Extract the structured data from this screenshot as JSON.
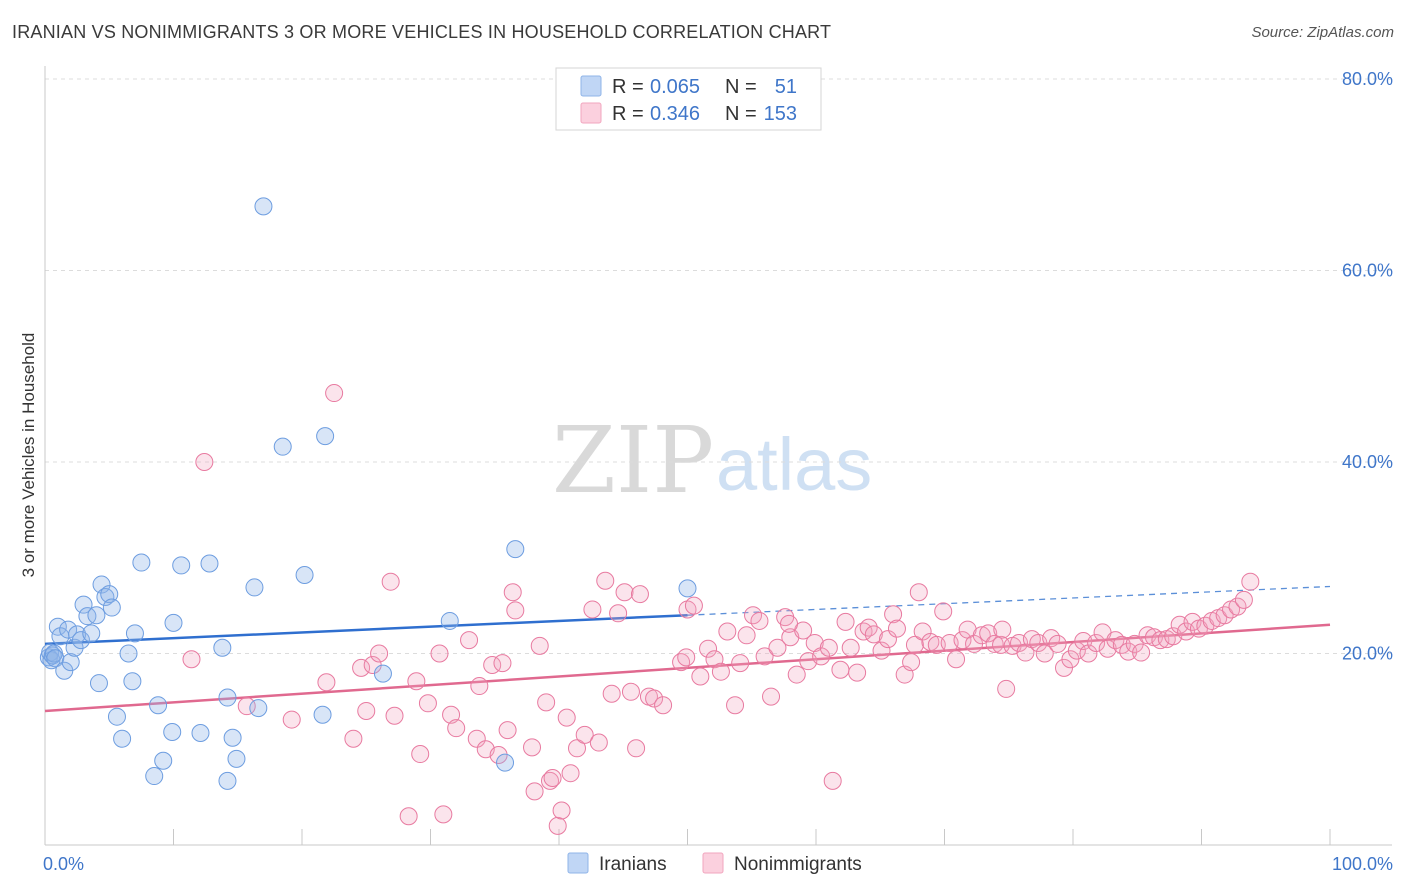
{
  "title": "IRANIAN VS NONIMMIGRANTS 3 OR MORE VEHICLES IN HOUSEHOLD CORRELATION CHART",
  "source": "Source: ZipAtlas.com",
  "watermark": {
    "zip": "ZIP",
    "atlas": "atlas"
  },
  "legend_top": {
    "r_label": "R =",
    "n_label": "N =",
    "rows": [
      {
        "r": "0.065",
        "n": "51",
        "color": "#8fb4e8"
      },
      {
        "r": "0.346",
        "n": "153",
        "color": "#f2a6bf"
      }
    ]
  },
  "legend_bottom": [
    "Iranians",
    "Nonimmigrants"
  ],
  "chart_data": {
    "type": "scatter",
    "title": "IRANIAN VS NONIMMIGRANTS 3 OR MORE VEHICLES IN HOUSEHOLD CORRELATION CHART",
    "xlabel": "",
    "ylabel": "3 or more Vehicles in Household",
    "xlim": [
      0,
      100
    ],
    "ylim": [
      0,
      80
    ],
    "x_ticks": [
      "0.0%",
      "100.0%"
    ],
    "y_ticks": [
      "20.0%",
      "40.0%",
      "60.0%",
      "80.0%"
    ],
    "grid": true,
    "legend": "top-center",
    "series": [
      {
        "name": "Iranians",
        "color": "#6d9de0",
        "fill": "rgba(143,180,232,0.35)",
        "trend": {
          "x0": 0,
          "y0": 21.0,
          "x1": 100,
          "y1": 27.0,
          "solid_to": 50
        },
        "points": [
          [
            0.3,
            19.6
          ],
          [
            0.4,
            20.1
          ],
          [
            0.5,
            19.3
          ],
          [
            0.6,
            19.8
          ],
          [
            0.7,
            20.0
          ],
          [
            0.8,
            19.5
          ],
          [
            1.0,
            22.8
          ],
          [
            1.2,
            21.8
          ],
          [
            1.5,
            18.2
          ],
          [
            1.8,
            22.5
          ],
          [
            2.0,
            19.1
          ],
          [
            2.3,
            20.6
          ],
          [
            2.5,
            22.0
          ],
          [
            2.8,
            21.4
          ],
          [
            3.0,
            25.1
          ],
          [
            3.3,
            23.9
          ],
          [
            3.6,
            22.1
          ],
          [
            4.0,
            24.0
          ],
          [
            4.2,
            16.9
          ],
          [
            4.4,
            27.2
          ],
          [
            4.7,
            25.9
          ],
          [
            5.0,
            26.2
          ],
          [
            5.2,
            24.8
          ],
          [
            5.6,
            13.4
          ],
          [
            6.0,
            11.1
          ],
          [
            6.5,
            20.0
          ],
          [
            6.8,
            17.1
          ],
          [
            7.0,
            22.1
          ],
          [
            7.5,
            29.5
          ],
          [
            8.5,
            7.2
          ],
          [
            8.8,
            14.6
          ],
          [
            9.2,
            8.8
          ],
          [
            9.9,
            11.8
          ],
          [
            10.0,
            23.2
          ],
          [
            10.6,
            29.2
          ],
          [
            12.1,
            11.7
          ],
          [
            12.8,
            29.4
          ],
          [
            13.8,
            20.6
          ],
          [
            14.2,
            15.4
          ],
          [
            14.6,
            11.2
          ],
          [
            14.9,
            9.0
          ],
          [
            14.2,
            6.7
          ],
          [
            16.3,
            26.9
          ],
          [
            16.6,
            14.3
          ],
          [
            17.0,
            66.7
          ],
          [
            18.5,
            41.6
          ],
          [
            20.2,
            28.2
          ],
          [
            21.6,
            13.6
          ],
          [
            21.8,
            42.7
          ],
          [
            26.3,
            17.9
          ],
          [
            31.5,
            23.4
          ],
          [
            35.8,
            8.6
          ],
          [
            36.6,
            30.9
          ],
          [
            50.0,
            26.8
          ]
        ]
      },
      {
        "name": "Nonimmigrants",
        "color": "#e87aa0",
        "fill": "rgba(242,166,191,0.30)",
        "trend": {
          "x0": 0,
          "y0": 14.0,
          "x1": 100,
          "y1": 23.0
        },
        "points": [
          [
            11.4,
            19.4
          ],
          [
            12.4,
            40.0
          ],
          [
            15.7,
            14.5
          ],
          [
            19.2,
            13.1
          ],
          [
            21.9,
            17.0
          ],
          [
            22.5,
            47.2
          ],
          [
            24.0,
            11.1
          ],
          [
            24.6,
            18.5
          ],
          [
            25.0,
            14.0
          ],
          [
            25.5,
            18.8
          ],
          [
            26.0,
            20.0
          ],
          [
            26.9,
            27.5
          ],
          [
            27.2,
            13.5
          ],
          [
            28.3,
            3.0
          ],
          [
            28.9,
            17.1
          ],
          [
            29.2,
            9.5
          ],
          [
            29.8,
            14.8
          ],
          [
            30.7,
            20.0
          ],
          [
            31.0,
            3.2
          ],
          [
            31.6,
            13.6
          ],
          [
            32.0,
            12.2
          ],
          [
            33.0,
            21.4
          ],
          [
            33.8,
            16.6
          ],
          [
            33.6,
            11.1
          ],
          [
            34.3,
            10.0
          ],
          [
            34.8,
            18.8
          ],
          [
            35.3,
            9.4
          ],
          [
            35.6,
            19.0
          ],
          [
            36.0,
            12.0
          ],
          [
            36.4,
            26.4
          ],
          [
            36.6,
            24.5
          ],
          [
            37.9,
            10.2
          ],
          [
            38.1,
            5.6
          ],
          [
            38.5,
            20.8
          ],
          [
            39.0,
            14.9
          ],
          [
            39.3,
            6.7
          ],
          [
            39.5,
            7.0
          ],
          [
            39.9,
            2.0
          ],
          [
            40.2,
            3.6
          ],
          [
            40.6,
            13.3
          ],
          [
            40.9,
            7.5
          ],
          [
            41.4,
            10.1
          ],
          [
            42.0,
            11.5
          ],
          [
            42.6,
            24.6
          ],
          [
            43.1,
            10.7
          ],
          [
            43.6,
            27.6
          ],
          [
            44.1,
            15.8
          ],
          [
            44.6,
            24.2
          ],
          [
            45.1,
            26.4
          ],
          [
            45.6,
            16.0
          ],
          [
            46.0,
            10.1
          ],
          [
            46.3,
            26.2
          ],
          [
            47.0,
            15.5
          ],
          [
            47.4,
            15.3
          ],
          [
            48.1,
            14.6
          ],
          [
            49.5,
            19.1
          ],
          [
            49.9,
            19.6
          ],
          [
            50.0,
            24.6
          ],
          [
            50.5,
            25.0
          ],
          [
            51.0,
            17.6
          ],
          [
            51.6,
            20.5
          ],
          [
            52.1,
            19.4
          ],
          [
            52.6,
            18.1
          ],
          [
            53.1,
            22.3
          ],
          [
            53.7,
            14.6
          ],
          [
            54.1,
            19.0
          ],
          [
            54.6,
            21.9
          ],
          [
            55.1,
            24.0
          ],
          [
            55.6,
            23.4
          ],
          [
            56.0,
            19.7
          ],
          [
            56.5,
            15.5
          ],
          [
            57.0,
            20.6
          ],
          [
            57.6,
            23.8
          ],
          [
            58.0,
            21.7
          ],
          [
            58.5,
            17.8
          ],
          [
            59.0,
            22.4
          ],
          [
            59.4,
            19.2
          ],
          [
            59.9,
            21.1
          ],
          [
            60.4,
            19.7
          ],
          [
            61.0,
            20.6
          ],
          [
            61.3,
            6.7
          ],
          [
            61.9,
            18.3
          ],
          [
            62.3,
            23.3
          ],
          [
            62.7,
            20.6
          ],
          [
            63.2,
            18.0
          ],
          [
            63.7,
            22.3
          ],
          [
            64.1,
            22.7
          ],
          [
            64.5,
            22.0
          ],
          [
            65.1,
            20.3
          ],
          [
            65.6,
            21.5
          ],
          [
            66.0,
            24.1
          ],
          [
            66.3,
            22.6
          ],
          [
            66.9,
            17.8
          ],
          [
            67.4,
            19.1
          ],
          [
            67.7,
            20.9
          ],
          [
            68.3,
            22.3
          ],
          [
            68.9,
            21.2
          ],
          [
            69.4,
            20.9
          ],
          [
            69.9,
            24.4
          ],
          [
            70.4,
            21.1
          ],
          [
            70.9,
            19.4
          ],
          [
            71.4,
            21.4
          ],
          [
            71.8,
            22.5
          ],
          [
            72.3,
            21.0
          ],
          [
            72.9,
            21.9
          ],
          [
            73.4,
            22.1
          ],
          [
            73.9,
            21.0
          ],
          [
            74.4,
            20.9
          ],
          [
            74.8,
            16.3
          ],
          [
            75.3,
            20.8
          ],
          [
            75.8,
            21.1
          ],
          [
            76.3,
            20.1
          ],
          [
            76.8,
            21.5
          ],
          [
            77.3,
            21.1
          ],
          [
            77.8,
            20.0
          ],
          [
            78.3,
            21.6
          ],
          [
            78.8,
            21.0
          ],
          [
            79.3,
            18.5
          ],
          [
            79.8,
            19.4
          ],
          [
            80.3,
            20.3
          ],
          [
            80.8,
            21.3
          ],
          [
            81.2,
            20.0
          ],
          [
            81.8,
            21.1
          ],
          [
            82.3,
            22.2
          ],
          [
            82.7,
            20.5
          ],
          [
            83.3,
            21.4
          ],
          [
            83.8,
            20.9
          ],
          [
            84.3,
            20.2
          ],
          [
            84.8,
            21.0
          ],
          [
            85.3,
            20.1
          ],
          [
            85.8,
            21.9
          ],
          [
            86.3,
            21.7
          ],
          [
            86.8,
            21.4
          ],
          [
            87.3,
            21.5
          ],
          [
            87.8,
            21.8
          ],
          [
            88.3,
            23.0
          ],
          [
            88.8,
            22.3
          ],
          [
            89.3,
            23.3
          ],
          [
            89.8,
            22.6
          ],
          [
            90.3,
            22.9
          ],
          [
            90.8,
            23.4
          ],
          [
            91.3,
            23.7
          ],
          [
            91.8,
            24.0
          ],
          [
            92.3,
            24.6
          ],
          [
            92.8,
            24.9
          ],
          [
            93.3,
            25.6
          ],
          [
            93.8,
            27.5
          ],
          [
            74.5,
            22.5
          ],
          [
            68.0,
            26.4
          ],
          [
            57.9,
            23.1
          ]
        ]
      }
    ]
  }
}
